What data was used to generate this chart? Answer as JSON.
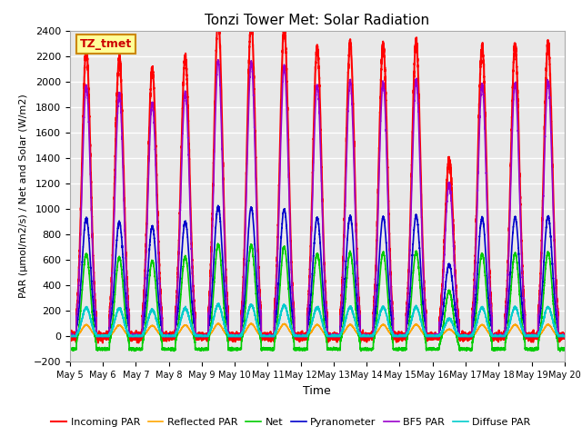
{
  "title": "Tonzi Tower Met: Solar Radiation",
  "xlabel": "Time",
  "ylabel": "PAR (μmol/m2/s) / Net and Solar (W/m2)",
  "ylim": [
    -200,
    2400
  ],
  "background_color": "#e8e8e8",
  "grid_color": "#ffffff",
  "annotation_text": "TZ_tmet",
  "annotation_bbox": {
    "facecolor": "#ffff99",
    "edgecolor": "#cc8800"
  },
  "series": {
    "incoming_par": {
      "label": "Incoming PAR",
      "color": "#ff0000",
      "lw": 1.5
    },
    "reflected_par": {
      "label": "Reflected PAR",
      "color": "#ffa500",
      "lw": 1.2
    },
    "net": {
      "label": "Net",
      "color": "#00cc00",
      "lw": 1.2
    },
    "pyranometer": {
      "label": "Pyranometer",
      "color": "#0000cc",
      "lw": 1.2
    },
    "bf5_par": {
      "label": "BF5 PAR",
      "color": "#9900cc",
      "lw": 1.2
    },
    "diffuse_par": {
      "label": "Diffuse PAR",
      "color": "#00cccc",
      "lw": 1.2
    }
  },
  "xtick_labels": [
    "May 5",
    "May 6",
    "May 7",
    "May 8",
    "May 9",
    "May 10",
    "May 11",
    "May 12",
    "May 13",
    "May 14",
    "May 15",
    "May 16",
    "May 17",
    "May 18",
    "May 19",
    "May 20"
  ],
  "ytick_values": [
    -200,
    0,
    200,
    400,
    600,
    800,
    1000,
    1200,
    1400,
    1600,
    1800,
    2000,
    2200,
    2400
  ],
  "n_days": 15,
  "pts_per_day": 480,
  "legend_ncol": 6
}
